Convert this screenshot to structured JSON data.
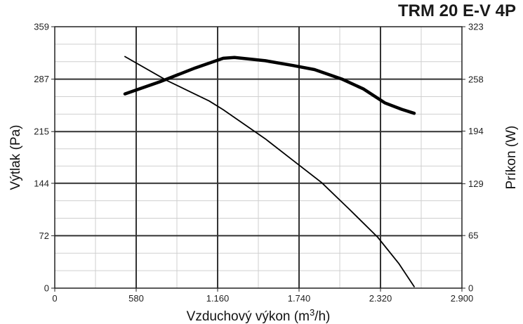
{
  "chart_data": {
    "type": "line",
    "title": "TRM 20 E-V 4P",
    "xlabel_prefix": "Vzduchový výkon (m",
    "xlabel_sup": "3",
    "xlabel_suffix": "/h)",
    "ylabel_left": "Výtlak (Pa)",
    "ylabel_right": "Príkon (W)",
    "xlim": [
      0,
      2900
    ],
    "ylim_left": [
      0,
      359
    ],
    "ylim_right": [
      0,
      323
    ],
    "x_ticks": [
      0,
      580,
      1160,
      1740,
      2320,
      2900
    ],
    "x_tick_labels": [
      "0",
      "580",
      "1.160",
      "1.740",
      "2.320",
      "2.900"
    ],
    "y_left_ticks": [
      0,
      72,
      144,
      215,
      287,
      359
    ],
    "y_left_tick_labels": [
      "0",
      "72",
      "144",
      "215",
      "287",
      "359"
    ],
    "y_right_ticks": [
      0,
      65,
      129,
      194,
      258,
      323
    ],
    "y_right_tick_labels": [
      "0",
      "65",
      "129",
      "194",
      "258",
      "323"
    ],
    "grid": true,
    "series": [
      {
        "axis": "left",
        "style": "thin",
        "x": [
          500,
          800,
          1100,
          1200,
          1500,
          1700,
          1900,
          2100,
          2300,
          2450,
          2560
        ],
        "y": [
          318,
          285,
          257,
          245,
          205,
          175,
          145,
          108,
          70,
          34,
          2
        ]
      },
      {
        "axis": "right",
        "style": "thick",
        "x": [
          500,
          750,
          1000,
          1200,
          1280,
          1500,
          1700,
          1850,
          2050,
          2200,
          2350,
          2470,
          2560
        ],
        "y": [
          240,
          255,
          272,
          284,
          285,
          281,
          275,
          270,
          258,
          246,
          229,
          221,
          216
        ]
      }
    ]
  }
}
